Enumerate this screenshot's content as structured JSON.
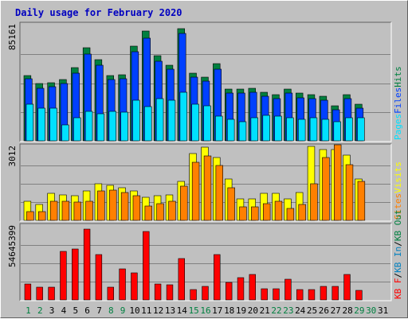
{
  "colors": {
    "frame_bg": "#c0c0c0",
    "title": "#0000c0",
    "hits": "#008040",
    "files": "#0040ff",
    "pages": "#00e0ff",
    "visits": "#ffff00",
    "sites": "#ff8000",
    "kbin": "#0080c0",
    "kbout": "#008040",
    "kbf": "#ff0000",
    "weekend_day": "#008040",
    "weekday": "#000000"
  },
  "chart_data": {
    "type": "bar",
    "title": "Daily usage for February 2020",
    "days": [
      "1",
      "2",
      "3",
      "4",
      "5",
      "6",
      "7",
      "8",
      "9",
      "10",
      "11",
      "12",
      "13",
      "14",
      "15",
      "16",
      "17",
      "18",
      "19",
      "20",
      "21",
      "22",
      "23",
      "24",
      "25",
      "26",
      "27",
      "28",
      "29",
      "30",
      "31"
    ],
    "weekend_days": [
      "1",
      "2",
      "8",
      "9",
      "15",
      "16",
      "22",
      "23",
      "29",
      "30"
    ],
    "panels": [
      {
        "name": "hits-files-pages",
        "ymax_label": "85161",
        "ymax": 85161,
        "legend": [
          {
            "text": "Pages",
            "color": "#00e0ff"
          },
          {
            "text": "Files",
            "color": "#0040ff"
          },
          {
            "text": "Hits",
            "color": "#008040"
          }
        ],
        "series": [
          {
            "name": "Hits",
            "color": "#008040",
            "values": [
              48000,
              42000,
              43000,
              45000,
              54000,
              69000,
              60000,
              48000,
              49000,
              70000,
              81000,
              63000,
              56000,
              83000,
              50000,
              47000,
              57000,
              38000,
              38000,
              39000,
              36000,
              34000,
              38000,
              35000,
              34000,
              33000,
              26000,
              34000,
              27000,
              0,
              0
            ]
          },
          {
            "name": "Files",
            "color": "#0040ff",
            "values": [
              46000,
              39000,
              40000,
              42000,
              50000,
              64000,
              56000,
              45000,
              46000,
              66000,
              76000,
              59000,
              53000,
              79000,
              47000,
              44000,
              53000,
              35000,
              35000,
              36000,
              33000,
              31000,
              35000,
              32000,
              31000,
              30000,
              23000,
              31000,
              24000,
              0,
              0
            ]
          },
          {
            "name": "Pages",
            "color": "#00e0ff",
            "values": [
              27000,
              24000,
              24000,
              12000,
              17000,
              22000,
              20000,
              22000,
              21000,
              30000,
              25000,
              31000,
              30000,
              36000,
              27000,
              26000,
              18000,
              16000,
              14000,
              17000,
              19000,
              18000,
              17000,
              16000,
              17000,
              16000,
              14000,
              17000,
              17000,
              0,
              0
            ]
          }
        ]
      },
      {
        "name": "visits-sites",
        "ymax_label": "3012",
        "ymax": 3012,
        "legend": [
          {
            "text": "Sites",
            "color": "#ff8000"
          },
          {
            "text": "Visits",
            "color": "#ffff00"
          }
        ],
        "series": [
          {
            "name": "Visits",
            "color": "#ffff00",
            "values": [
              800,
              650,
              1100,
              1050,
              1000,
              1200,
              1500,
              1450,
              1350,
              1200,
              960,
              1000,
              1050,
              1600,
              2750,
              3000,
              2600,
              1700,
              900,
              900,
              1100,
              1100,
              900,
              1150,
              3040,
              2900,
              2900,
              2700,
              1700,
              0,
              0
            ]
          },
          {
            "name": "Sites",
            "color": "#ff8000",
            "values": [
              350,
              350,
              800,
              800,
              750,
              800,
              1200,
              1250,
              1150,
              1000,
              600,
              700,
              800,
              1400,
              2400,
              2650,
              2250,
              1350,
              550,
              550,
              700,
              800,
              500,
              650,
              1500,
              2600,
              3100,
              2300,
              1600,
              0,
              0
            ]
          }
        ]
      },
      {
        "name": "kbytes",
        "ymax_label": "54645399",
        "ymax": 54645399,
        "legend": [
          {
            "text": "KB F",
            "color": "#ff0000"
          },
          {
            "text": "/",
            "color": "#000000"
          },
          {
            "text": "KB In",
            "color": "#0080c0"
          },
          {
            "text": "/",
            "color": "#000000"
          },
          {
            "text": "KB Out",
            "color": "#008040"
          }
        ],
        "series": [
          {
            "name": "KB F",
            "color": "#ff0000",
            "values": [
              12000000,
              9500000,
              9500000,
              36000000,
              38000000,
              53000000,
              34000000,
              9500000,
              23000000,
              20000000,
              51000000,
              12000000,
              11000000,
              31000000,
              7500000,
              10000000,
              34000000,
              13000000,
              16500000,
              19000000,
              8500000,
              8500000,
              15500000,
              7500000,
              7500000,
              10000000,
              10000000,
              19000000,
              7000000,
              0,
              0
            ]
          }
        ]
      }
    ]
  }
}
